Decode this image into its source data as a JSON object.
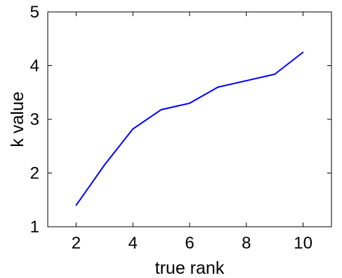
{
  "chart_data": {
    "type": "line",
    "title": "",
    "xlabel": "true rank",
    "ylabel": "k value",
    "xlim": [
      1,
      11
    ],
    "ylim": [
      1,
      5
    ],
    "xticks": [
      2,
      4,
      6,
      8,
      10
    ],
    "yticks": [
      1,
      2,
      3,
      4,
      5
    ],
    "grid": false,
    "series": [
      {
        "color": "#0000ff",
        "x": [
          2,
          3,
          4,
          5,
          6,
          7,
          8,
          9,
          10
        ],
        "y": [
          1.4,
          2.15,
          2.82,
          3.18,
          3.3,
          3.6,
          3.72,
          3.84,
          4.25
        ]
      }
    ]
  }
}
